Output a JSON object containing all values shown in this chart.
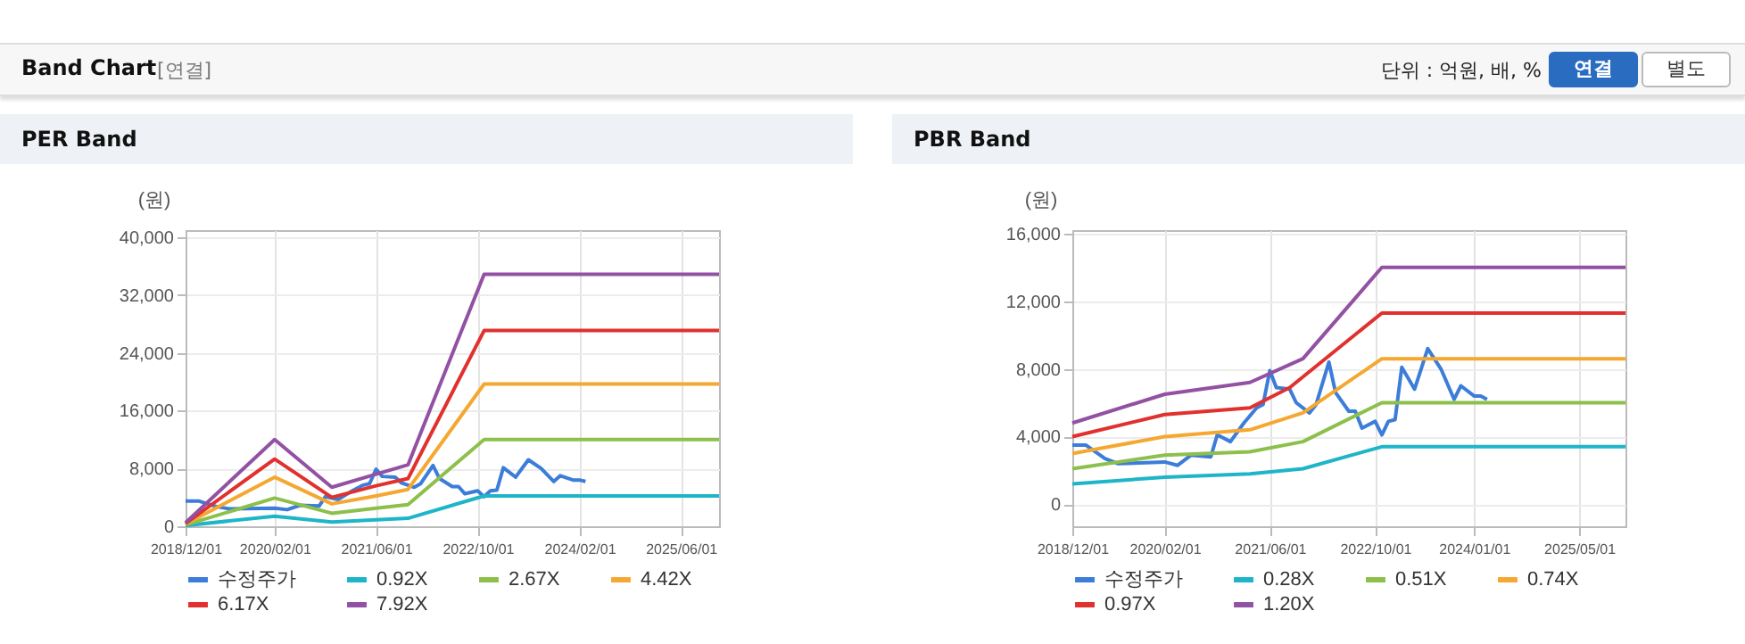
{
  "chart_data": [
    {
      "type": "other",
      "title": "Band Chart",
      "annotations": [
        "[연결]",
        "단위 : 억원, 배, %",
        "연결",
        "별도"
      ]
    },
    {
      "type": "line",
      "title": "PER Band",
      "ylabel": "(원)",
      "xlim": [
        "2018-12-01",
        "2025-12-01"
      ],
      "ylim": [
        0,
        41000
      ],
      "xticks": [
        {
          "value": "2018-12-01",
          "label": "2018/12/01"
        },
        {
          "value": "2020-02-01",
          "label": "2020/02/01"
        },
        {
          "value": "2021-06-01",
          "label": "2021/06/01"
        },
        {
          "value": "2022-10-01",
          "label": "2022/10/01"
        },
        {
          "value": "2024-02-01",
          "label": "2024/02/01"
        },
        {
          "value": "2025-06-01",
          "label": "2025/06/01"
        }
      ],
      "yticks": [
        {
          "value": 0,
          "label": "0"
        },
        {
          "value": 8000,
          "label": "8,000"
        },
        {
          "value": 16000,
          "label": "16,000"
        },
        {
          "value": 24000,
          "label": "24,000"
        },
        {
          "value": 32000,
          "label": "32,000"
        },
        {
          "value": 40000,
          "label": "40,000"
        }
      ],
      "grid": true,
      "legend": "bottom",
      "series": [
        {
          "name": "수정주가",
          "color": "#3b7dd8",
          "x": [
            "2018-12-01",
            "2019-02-01",
            "2019-05-01",
            "2019-07-01",
            "2020-02-01",
            "2020-04-01",
            "2020-06-01",
            "2020-09-01",
            "2020-10-01",
            "2020-12-01",
            "2021-02-01",
            "2021-04-01",
            "2021-05-01",
            "2021-06-01",
            "2021-07-01",
            "2021-09-01",
            "2021-10-01",
            "2021-12-01",
            "2022-01-01",
            "2022-03-01",
            "2022-04-01",
            "2022-06-01",
            "2022-07-01",
            "2022-08-01",
            "2022-10-01",
            "2022-11-01",
            "2022-12-01",
            "2023-01-01",
            "2023-02-01",
            "2023-04-01",
            "2023-06-01",
            "2023-08-01",
            "2023-10-01",
            "2023-11-01",
            "2024-01-01",
            "2024-02-01",
            "2024-03-01"
          ],
          "values": [
            3500,
            3500,
            2700,
            2400,
            2500,
            2300,
            2900,
            2800,
            4100,
            3700,
            4800,
            5700,
            5900,
            7900,
            6900,
            6800,
            6000,
            5400,
            5900,
            8400,
            6600,
            5500,
            5500,
            4500,
            4900,
            4100,
            4900,
            5000,
            8100,
            6800,
            9200,
            8000,
            6200,
            7000,
            6400,
            6400,
            6200
          ]
        },
        {
          "name": "0.92X",
          "color": "#1fb5c9",
          "x": [
            "2018-12-01",
            "2020-02-01",
            "2020-11-01",
            "2021-06-01",
            "2021-11-01",
            "2022-11-01",
            "2025-12-01"
          ],
          "values": [
            100,
            1400,
            600,
            900,
            1100,
            4200,
            4200
          ]
        },
        {
          "name": "2.67X",
          "color": "#8cc04b",
          "x": [
            "2018-12-01",
            "2020-02-01",
            "2020-11-01",
            "2021-06-01",
            "2021-11-01",
            "2022-11-01",
            "2025-12-01"
          ],
          "values": [
            200,
            3900,
            1800,
            2500,
            3000,
            12000,
            12000
          ]
        },
        {
          "name": "4.42X",
          "color": "#f5a831",
          "x": [
            "2018-12-01",
            "2020-02-01",
            "2020-11-01",
            "2021-06-01",
            "2021-11-01",
            "2022-11-01",
            "2025-12-01"
          ],
          "values": [
            300,
            6800,
            3100,
            4200,
            5100,
            19700,
            19700
          ]
        },
        {
          "name": "6.17X",
          "color": "#e0312e",
          "x": [
            "2018-12-01",
            "2020-02-01",
            "2020-11-01",
            "2021-06-01",
            "2021-11-01",
            "2022-11-01",
            "2025-12-01"
          ],
          "values": [
            400,
            9300,
            4000,
            5600,
            6600,
            27100,
            27100
          ]
        },
        {
          "name": "7.92X",
          "color": "#9351a3",
          "x": [
            "2018-12-01",
            "2020-02-01",
            "2020-11-01",
            "2021-06-01",
            "2021-11-01",
            "2022-11-01",
            "2025-12-01"
          ],
          "values": [
            500,
            12000,
            5400,
            7200,
            8500,
            34900,
            34900
          ]
        }
      ]
    },
    {
      "type": "line",
      "title": "PBR Band",
      "ylabel": "(원)",
      "xlim": [
        "2018-12-01",
        "2025-12-01"
      ],
      "ylim": [
        -1300,
        16200
      ],
      "xticks": [
        {
          "value": "2018-12-01",
          "label": "2018/12/01"
        },
        {
          "value": "2020-02-01",
          "label": "2020/02/01"
        },
        {
          "value": "2021-06-01",
          "label": "2021/06/01"
        },
        {
          "value": "2022-10-01",
          "label": "2022/10/01"
        },
        {
          "value": "2024-01-01",
          "label": "2024/01/01"
        },
        {
          "value": "2025-05-01",
          "label": "2025/05/01"
        }
      ],
      "yticks": [
        {
          "value": 0,
          "label": "0"
        },
        {
          "value": 4000,
          "label": "4,000"
        },
        {
          "value": 8000,
          "label": "8,000"
        },
        {
          "value": 12000,
          "label": "12,000"
        },
        {
          "value": 16000,
          "label": "16,000"
        }
      ],
      "grid": true,
      "legend": "bottom",
      "series": [
        {
          "name": "수정주가",
          "color": "#3b7dd8",
          "x": [
            "2018-12-01",
            "2019-02-01",
            "2019-05-01",
            "2019-07-01",
            "2020-02-01",
            "2020-04-01",
            "2020-06-01",
            "2020-09-01",
            "2020-10-01",
            "2020-12-01",
            "2021-02-01",
            "2021-04-01",
            "2021-05-01",
            "2021-06-01",
            "2021-07-01",
            "2021-09-01",
            "2021-10-01",
            "2021-12-01",
            "2022-01-01",
            "2022-03-01",
            "2022-04-01",
            "2022-06-01",
            "2022-07-01",
            "2022-08-01",
            "2022-10-01",
            "2022-11-01",
            "2022-12-01",
            "2023-01-01",
            "2023-02-01",
            "2023-04-01",
            "2023-06-01",
            "2023-08-01",
            "2023-10-01",
            "2023-11-01",
            "2024-01-01",
            "2024-02-01",
            "2024-03-01"
          ],
          "values": [
            3500,
            3500,
            2700,
            2400,
            2500,
            2300,
            2900,
            2800,
            4100,
            3700,
            4800,
            5700,
            5900,
            7900,
            6900,
            6800,
            6000,
            5400,
            5900,
            8400,
            6600,
            5500,
            5500,
            4500,
            4900,
            4100,
            4900,
            5000,
            8100,
            6800,
            9200,
            8000,
            6200,
            7000,
            6400,
            6400,
            6200
          ]
        },
        {
          "name": "0.28X",
          "color": "#1fb5c9",
          "x": [
            "2018-12-01",
            "2020-02-01",
            "2021-03-01",
            "2021-11-01",
            "2022-11-01",
            "2025-12-01"
          ],
          "values": [
            1200,
            1600,
            1800,
            2100,
            3400,
            3400
          ]
        },
        {
          "name": "0.51X",
          "color": "#8cc04b",
          "x": [
            "2018-12-01",
            "2020-02-01",
            "2021-03-01",
            "2021-11-01",
            "2022-11-01",
            "2025-12-01"
          ],
          "values": [
            2100,
            2900,
            3100,
            3700,
            6000,
            6000
          ]
        },
        {
          "name": "0.74X",
          "color": "#f5a831",
          "x": [
            "2018-12-01",
            "2020-02-01",
            "2021-03-01",
            "2021-11-01",
            "2022-11-01",
            "2025-12-01"
          ],
          "values": [
            3000,
            4000,
            4400,
            5400,
            8600,
            8600
          ]
        },
        {
          "name": "0.97X",
          "color": "#e0312e",
          "x": [
            "2018-12-01",
            "2020-02-01",
            "2021-03-01",
            "2021-09-01",
            "2022-11-01",
            "2025-12-01"
          ],
          "values": [
            4000,
            5300,
            5700,
            6900,
            11300,
            11300
          ]
        },
        {
          "name": "1.20X",
          "color": "#9351a3",
          "x": [
            "2018-12-01",
            "2020-02-01",
            "2021-03-01",
            "2021-11-01",
            "2022-11-01",
            "2025-12-01"
          ],
          "values": [
            4800,
            6500,
            7200,
            8600,
            14000,
            14000
          ]
        }
      ]
    }
  ]
}
